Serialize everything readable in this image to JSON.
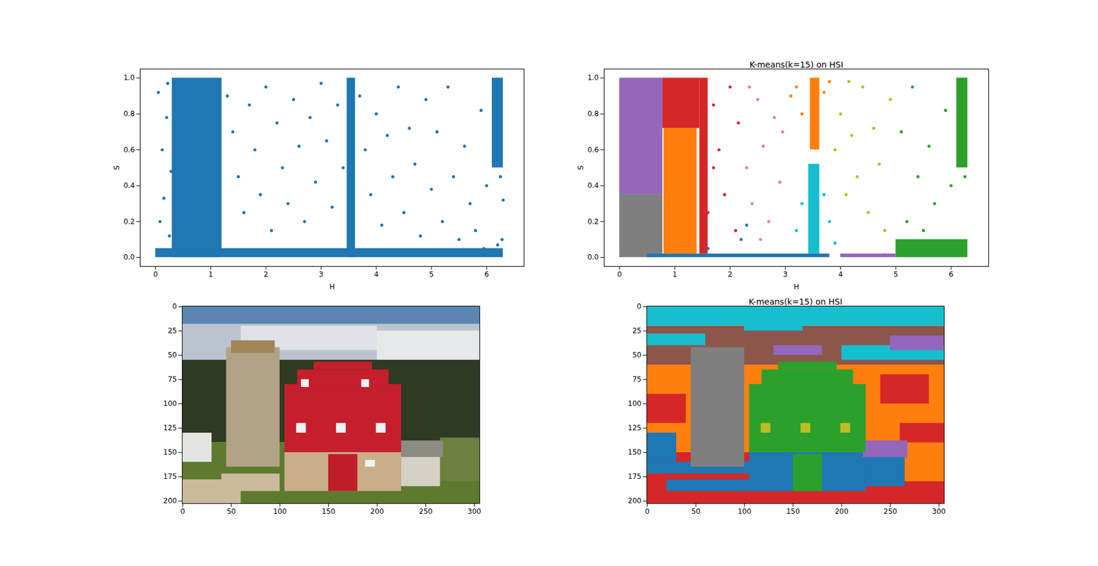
{
  "chart_data": [
    {
      "type": "scatter",
      "x_label": "H",
      "y_label": "S",
      "xlim": [
        -0.28,
        6.68
      ],
      "ylim": [
        -0.05,
        1.05
      ],
      "xticks": [
        0,
        1,
        2,
        3,
        4,
        5,
        6
      ],
      "yticks": [
        {
          "value": 0,
          "label": "0.0"
        },
        {
          "value": 0.2,
          "label": "0.2"
        },
        {
          "value": 0.4,
          "label": "0.4"
        },
        {
          "value": 0.6,
          "label": "0.6"
        },
        {
          "value": 0.8,
          "label": "0.8"
        },
        {
          "value": 1,
          "label": "1.0"
        }
      ],
      "series": [
        {
          "color": "#1f77b4",
          "dense_regions": [
            [
              0.3,
              1.2,
              0,
              1
            ],
            [
              0,
              6.3,
              0,
              0.05
            ],
            [
              3.47,
              3.62,
              0,
              1
            ],
            [
              6.1,
              6.3,
              0.5,
              1
            ]
          ],
          "x": [
            0.05,
            0.12,
            0.2,
            0.15,
            0.25,
            0.28,
            0.08,
            0.22,
            1.3,
            1.4,
            1.5,
            1.6,
            1.7,
            1.8,
            1.9,
            2.0,
            2.1,
            2.2,
            2.3,
            2.4,
            2.5,
            2.6,
            2.7,
            2.8,
            2.9,
            3.0,
            3.1,
            3.2,
            3.3,
            3.4,
            3.7,
            3.8,
            3.9,
            4.0,
            4.1,
            4.2,
            4.3,
            4.4,
            4.5,
            4.6,
            4.7,
            4.8,
            4.9,
            5.0,
            5.1,
            5.2,
            5.3,
            5.4,
            5.5,
            5.6,
            5.7,
            5.8,
            5.9,
            6.0,
            6.25,
            6.3,
            6.2,
            5.95,
            6.28
          ],
          "y": [
            0.92,
            0.6,
            0.78,
            0.33,
            0.12,
            0.48,
            0.2,
            0.97,
            0.9,
            0.7,
            0.45,
            0.25,
            0.85,
            0.6,
            0.35,
            0.95,
            0.15,
            0.75,
            0.5,
            0.3,
            0.88,
            0.62,
            0.2,
            0.78,
            0.42,
            0.97,
            0.65,
            0.28,
            0.85,
            0.5,
            0.9,
            0.6,
            0.35,
            0.8,
            0.18,
            0.68,
            0.45,
            0.95,
            0.25,
            0.72,
            0.52,
            0.12,
            0.88,
            0.38,
            0.7,
            0.2,
            0.95,
            0.45,
            0.1,
            0.62,
            0.3,
            0.15,
            0.82,
            0.4,
            0.45,
            0.32,
            0.07,
            0.05,
            0.1
          ]
        }
      ]
    },
    {
      "type": "scatter",
      "title": "K-means(k=15) on HSI",
      "x_label": "H",
      "y_label": "S",
      "xlim": [
        -0.28,
        6.68
      ],
      "ylim": [
        -0.05,
        1.05
      ],
      "xticks": [
        0,
        1,
        2,
        3,
        4,
        5,
        6
      ],
      "yticks": [
        {
          "value": 0,
          "label": "0.0"
        },
        {
          "value": 0.2,
          "label": "0.2"
        },
        {
          "value": 0.4,
          "label": "0.4"
        },
        {
          "value": 0.6,
          "label": "0.6"
        },
        {
          "value": 0.8,
          "label": "0.8"
        },
        {
          "value": 1,
          "label": "1.0"
        }
      ],
      "series": [
        {
          "color": "#9467bd",
          "dense_regions": [
            [
              0,
              0.78,
              0.35,
              1
            ],
            [
              4.0,
              5.0,
              0,
              0.02
            ]
          ],
          "x": [
            4.2,
            4.8
          ],
          "y": [
            0.01,
            0.015
          ]
        },
        {
          "color": "#7f7f7f",
          "dense_regions": [
            [
              0,
              0.78,
              0,
              0.35
            ]
          ],
          "x": [],
          "y": []
        },
        {
          "color": "#ff7f0e",
          "dense_regions": [
            [
              0.8,
              1.4,
              0.02,
              0.72
            ],
            [
              3.45,
              3.62,
              0.6,
              1
            ]
          ],
          "x": [
            3.1,
            3.2,
            3.3,
            3.7,
            3.8
          ],
          "y": [
            0.9,
            0.95,
            0.8,
            0.92,
            0.98
          ]
        },
        {
          "color": "#d62728",
          "dense_regions": [
            [
              0.78,
              1.45,
              0.72,
              1
            ],
            [
              1.45,
              1.6,
              0.02,
              1
            ]
          ],
          "x": [
            1.7,
            1.8,
            1.9,
            2.0,
            2.1,
            1.6,
            1.7,
            2.15
          ],
          "y": [
            0.85,
            0.6,
            0.35,
            0.95,
            0.15,
            0.25,
            0.5,
            0.75
          ]
        },
        {
          "color": "#e377c2",
          "dense_regions": [],
          "x": [
            2.3,
            2.4,
            2.5,
            2.6,
            2.7,
            2.8,
            2.9,
            2.35,
            2.55,
            2.95
          ],
          "y": [
            0.5,
            0.3,
            0.88,
            0.62,
            0.2,
            0.78,
            0.42,
            0.95,
            0.1,
            0.7
          ]
        },
        {
          "color": "#17becf",
          "dense_regions": [
            [
              3.42,
              3.62,
              0.02,
              0.52
            ]
          ],
          "x": [
            3.2,
            3.3,
            3.8,
            3.9,
            3.7
          ],
          "y": [
            0.15,
            0.3,
            0.2,
            0.08,
            0.35
          ]
        },
        {
          "color": "#bcbd22",
          "dense_regions": [],
          "x": [
            3.9,
            4.0,
            4.2,
            4.3,
            4.4,
            4.5,
            4.6,
            4.7,
            4.9,
            4.1,
            4.8,
            4.15
          ],
          "y": [
            0.6,
            0.8,
            0.68,
            0.45,
            0.95,
            0.25,
            0.72,
            0.52,
            0.88,
            0.35,
            0.15,
            0.98
          ]
        },
        {
          "color": "#2ca02c",
          "dense_regions": [
            [
              6.1,
              6.3,
              0.5,
              1
            ],
            [
              5.0,
              6.3,
              0,
              0.1
            ]
          ],
          "x": [
            5.1,
            5.2,
            5.3,
            5.4,
            5.6,
            5.7,
            5.9,
            6.0,
            6.25,
            5.5
          ],
          "y": [
            0.7,
            0.2,
            0.95,
            0.45,
            0.62,
            0.3,
            0.82,
            0.4,
            0.45,
            0.15
          ]
        },
        {
          "color": "#1f77b4",
          "dense_regions": [
            [
              0.5,
              3.8,
              0,
              0.02
            ]
          ],
          "x": [
            2.2,
            2.3,
            1.6
          ],
          "y": [
            0.1,
            0.18,
            0.05
          ]
        }
      ]
    },
    {
      "type": "image",
      "xlim": [
        -0.5,
        305.5
      ],
      "ylim": [
        202.5,
        -0.5
      ],
      "xticks": [
        0,
        50,
        100,
        150,
        200,
        250,
        300
      ],
      "yticks": [
        0,
        25,
        50,
        75,
        100,
        125,
        150,
        175,
        200
      ],
      "regions": [
        [
          -0.5,
          305.5,
          -0.5,
          65,
          "#b9c4cf"
        ],
        [
          -0.5,
          305.5,
          -0.5,
          18,
          "#5b86b3"
        ],
        [
          60,
          200,
          20,
          45,
          "#dfe3e8"
        ],
        [
          200,
          305.5,
          25,
          55,
          "#e6e8ea"
        ],
        [
          -0.5,
          305.5,
          55,
          140,
          "#2e3a22"
        ],
        [
          -0.5,
          305.5,
          140,
          202.5,
          "#5d7a2f"
        ],
        [
          265,
          305.5,
          135,
          180,
          "#6d8040"
        ],
        [
          -0.5,
          30,
          130,
          160,
          "#e4e4e0"
        ],
        [
          -0.5,
          60,
          178,
          202.5,
          "#cbb99b"
        ],
        [
          40,
          100,
          172,
          190,
          "#cbb99b"
        ],
        [
          45,
          100,
          42,
          165,
          "#b3a386"
        ],
        [
          50,
          95,
          35,
          48,
          "#a08658"
        ],
        [
          225,
          265,
          140,
          185,
          "#d6d1c6"
        ],
        [
          222,
          268,
          138,
          155,
          "#8d8b82"
        ],
        [
          105,
          225,
          150,
          190,
          "#c9ae87"
        ],
        [
          105,
          225,
          80,
          150,
          "#c51f2d"
        ],
        [
          118,
          212,
          65,
          80,
          "#c51f2d"
        ],
        [
          135,
          195,
          57,
          65,
          "#c51f2d"
        ],
        [
          150,
          180,
          152,
          190,
          "#c01d2a"
        ],
        [
          122,
          130,
          75,
          83,
          "#f2f2f2"
        ],
        [
          184,
          192,
          75,
          83,
          "#f2f2f2"
        ],
        [
          117,
          127,
          120,
          130,
          "#f2f2f2"
        ],
        [
          158,
          168,
          120,
          130,
          "#f2f2f2"
        ],
        [
          199,
          209,
          120,
          130,
          "#f2f2f2"
        ],
        [
          188,
          198,
          158,
          165,
          "#f2f2f2"
        ]
      ]
    },
    {
      "type": "image",
      "title": "K-means(k=15) on HSI",
      "xlim": [
        -0.5,
        305.5
      ],
      "ylim": [
        202.5,
        -0.5
      ],
      "xticks": [
        0,
        50,
        100,
        150,
        200,
        250,
        300
      ],
      "yticks": [
        0,
        25,
        50,
        75,
        100,
        125,
        150,
        175,
        200
      ],
      "regions": [
        [
          -0.5,
          305.5,
          55,
          150,
          "#ff7f0e"
        ],
        [
          -0.5,
          305.5,
          -0.5,
          20,
          "#17becf"
        ],
        [
          -0.5,
          305.5,
          20,
          60,
          "#8c564b"
        ],
        [
          0,
          60,
          28,
          40,
          "#17becf"
        ],
        [
          200,
          305.5,
          40,
          55,
          "#17becf"
        ],
        [
          100,
          160,
          15,
          25,
          "#17becf"
        ],
        [
          130,
          180,
          40,
          50,
          "#9467bd"
        ],
        [
          250,
          305,
          30,
          45,
          "#9467bd"
        ],
        [
          0,
          40,
          90,
          120,
          "#d62728"
        ],
        [
          240,
          290,
          70,
          100,
          "#d62728"
        ],
        [
          260,
          305.5,
          120,
          150,
          "#d62728"
        ],
        [
          -0.5,
          305.5,
          150,
          202.5,
          "#d62728"
        ],
        [
          -0.5,
          120,
          160,
          172,
          "#1f77b4"
        ],
        [
          20,
          140,
          178,
          190,
          "#1f77b4"
        ],
        [
          -0.5,
          30,
          130,
          160,
          "#1f77b4"
        ],
        [
          265,
          305.5,
          140,
          180,
          "#ff7f0e"
        ],
        [
          45,
          100,
          42,
          165,
          "#7f7f7f"
        ],
        [
          105,
          225,
          150,
          190,
          "#1f77b4"
        ],
        [
          225,
          265,
          140,
          185,
          "#1f77b4"
        ],
        [
          222,
          268,
          138,
          155,
          "#9467bd"
        ],
        [
          105,
          225,
          80,
          150,
          "#2ca02c"
        ],
        [
          118,
          212,
          65,
          80,
          "#2ca02c"
        ],
        [
          135,
          195,
          57,
          65,
          "#2ca02c"
        ],
        [
          150,
          180,
          152,
          190,
          "#2ca02c"
        ],
        [
          117,
          127,
          120,
          130,
          "#bcbd22"
        ],
        [
          158,
          168,
          120,
          130,
          "#bcbd22"
        ],
        [
          199,
          209,
          120,
          130,
          "#bcbd22"
        ]
      ]
    }
  ]
}
